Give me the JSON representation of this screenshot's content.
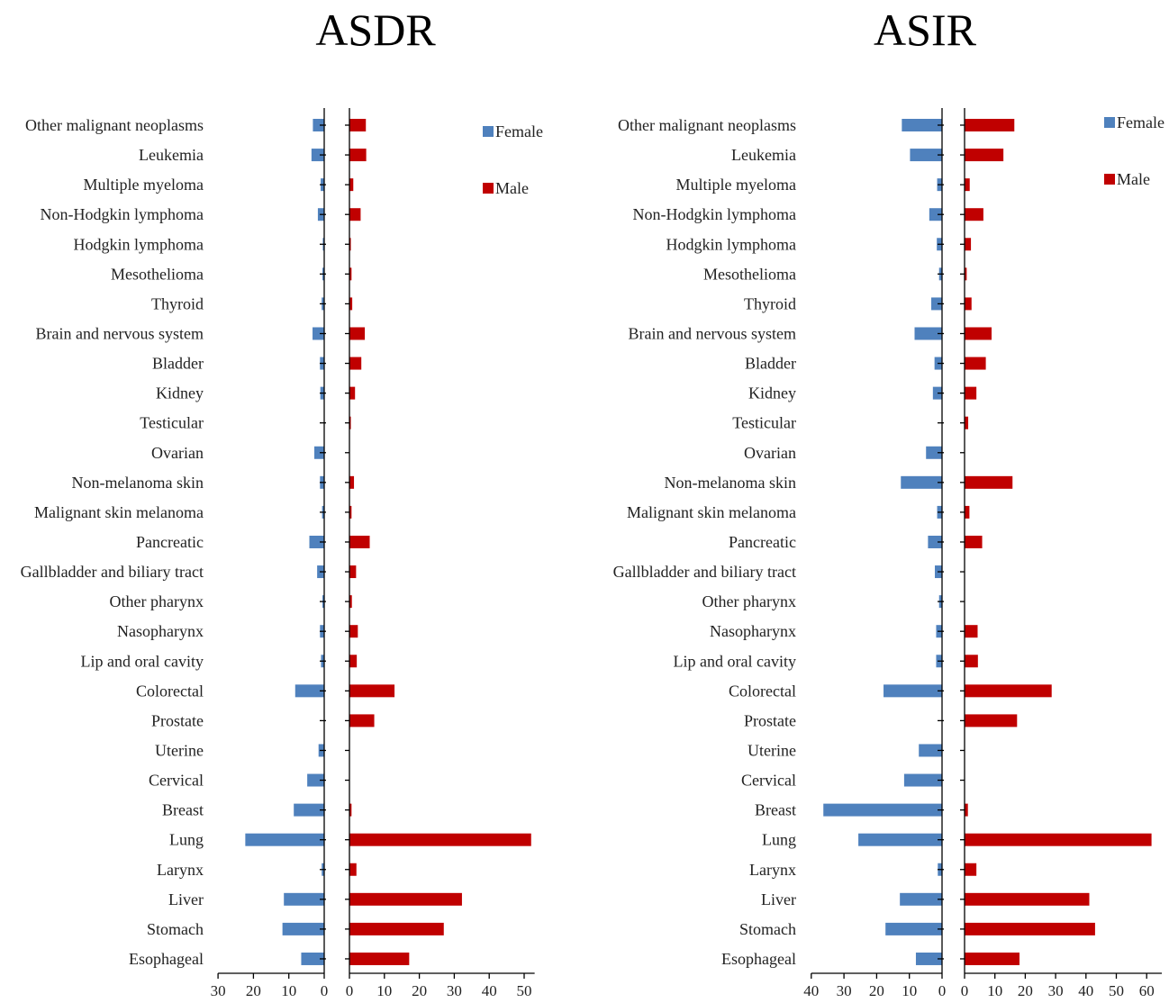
{
  "chart_data": [
    {
      "type": "bar",
      "orientation": "horizontal",
      "layout": "butterfly",
      "title": "ASDR",
      "categories": [
        "Other malignant neoplasms",
        "Leukemia",
        "Multiple myeloma",
        "Non-Hodgkin lymphoma",
        "Hodgkin lymphoma",
        "Mesothelioma",
        "Thyroid",
        "Brain and nervous system",
        "Bladder",
        "Kidney",
        "Testicular",
        "Ovarian",
        "Non-melanoma skin",
        "Malignant skin melanoma",
        "Pancreatic",
        "Gallbladder and biliary tract",
        "Other pharynx",
        "Nasopharynx",
        "Lip and oral cavity",
        "Colorectal",
        "Prostate",
        "Uterine",
        "Cervical",
        "Breast",
        "Lung",
        "Larynx",
        "Liver",
        "Stomach",
        "Esophageal"
      ],
      "series": [
        {
          "name": "Female",
          "color": "#4f81bd",
          "side": "left",
          "values": [
            3.2,
            3.6,
            1.0,
            1.8,
            0.4,
            0.5,
            0.7,
            3.3,
            1.2,
            1.1,
            0.0,
            2.8,
            1.2,
            0.6,
            4.2,
            2.0,
            0.5,
            1.2,
            0.9,
            8.2,
            0.0,
            1.6,
            4.8,
            8.6,
            22.3,
            0.7,
            11.4,
            11.8,
            6.5
          ]
        },
        {
          "name": "Male",
          "color": "#c00000",
          "side": "right",
          "values": [
            4.7,
            4.8,
            1.1,
            3.2,
            0.4,
            0.6,
            0.8,
            4.4,
            3.4,
            1.6,
            0.4,
            0.0,
            1.3,
            0.6,
            5.8,
            1.9,
            0.7,
            2.4,
            2.1,
            12.9,
            7.1,
            0.0,
            0.0,
            0.6,
            52.0,
            2.0,
            32.2,
            27.0,
            17.1
          ]
        }
      ],
      "female_axis": {
        "ticks": [
          30,
          20,
          10,
          0
        ],
        "range": [
          30,
          0
        ]
      },
      "male_axis": {
        "ticks": [
          0,
          10,
          20,
          30,
          40,
          50
        ],
        "range": [
          0,
          53
        ]
      },
      "legend": "top-right"
    },
    {
      "type": "bar",
      "orientation": "horizontal",
      "layout": "butterfly",
      "title": "ASIR",
      "categories": [
        "Other malignant neoplasms",
        "Leukemia",
        "Multiple myeloma",
        "Non-Hodgkin lymphoma",
        "Hodgkin lymphoma",
        "Mesothelioma",
        "Thyroid",
        "Brain and nervous system",
        "Bladder",
        "Kidney",
        "Testicular",
        "Ovarian",
        "Non-melanoma skin",
        "Malignant skin melanoma",
        "Pancreatic",
        "Gallbladder and biliary tract",
        "Other pharynx",
        "Nasopharynx",
        "Lip and oral cavity",
        "Colorectal",
        "Prostate",
        "Uterine",
        "Cervical",
        "Breast",
        "Lung",
        "Larynx",
        "Liver",
        "Stomach",
        "Esophageal"
      ],
      "series": [
        {
          "name": "Female",
          "color": "#4f81bd",
          "side": "left",
          "values": [
            12.3,
            9.8,
            1.5,
            3.9,
            1.6,
            0.9,
            3.3,
            8.4,
            2.3,
            2.8,
            0.0,
            4.9,
            12.6,
            1.5,
            4.3,
            2.2,
            0.9,
            1.8,
            1.8,
            17.9,
            0.0,
            7.1,
            11.6,
            36.3,
            25.6,
            1.3,
            12.9,
            17.3,
            8.0
          ]
        },
        {
          "name": "Male",
          "color": "#c00000",
          "side": "right",
          "values": [
            16.4,
            12.8,
            1.7,
            6.2,
            2.1,
            0.7,
            2.3,
            8.9,
            7.0,
            3.9,
            1.2,
            0.0,
            15.8,
            1.6,
            5.8,
            0.0,
            0.0,
            4.3,
            4.4,
            28.7,
            17.3,
            0.0,
            0.0,
            1.1,
            61.6,
            3.9,
            41.1,
            43.0,
            18.1
          ]
        }
      ],
      "female_axis": {
        "ticks": [
          40,
          30,
          20,
          10,
          0
        ],
        "range": [
          40,
          0
        ]
      },
      "male_axis": {
        "ticks": [
          0,
          10,
          20,
          30,
          40,
          50,
          60
        ],
        "range": [
          0,
          65
        ]
      },
      "legend": "top-right"
    }
  ]
}
